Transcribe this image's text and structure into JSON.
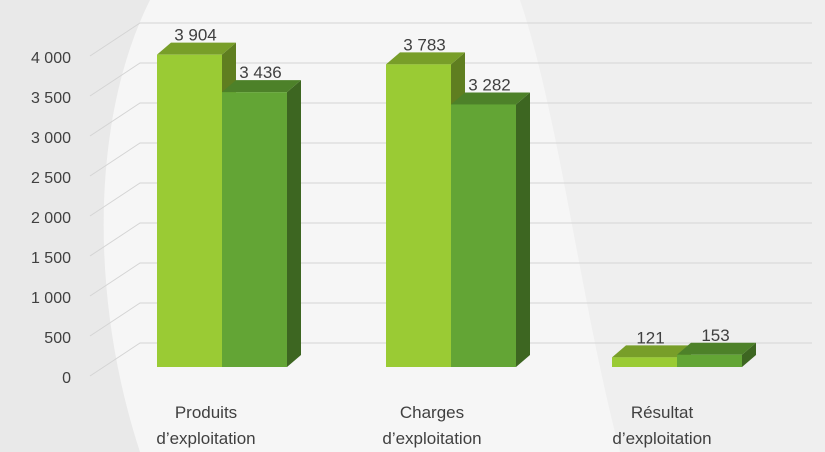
{
  "chart_data": {
    "type": "bar",
    "categories": [
      "Produits d’exploitation",
      "Charges d’exploitation",
      "Résultat d’exploitation"
    ],
    "category_lines": [
      [
        "Produits",
        "d’exploitation"
      ],
      [
        "Charges",
        "d’exploitation"
      ],
      [
        "Résultat",
        "d’exploitation"
      ]
    ],
    "series": [
      {
        "values": [
          3904,
          3783,
          121
        ],
        "labels": [
          "3 904",
          "3 783",
          "121"
        ],
        "color": "#9acb34"
      },
      {
        "values": [
          3436,
          3282,
          153
        ],
        "labels": [
          "3 436",
          "3 282",
          "153"
        ],
        "color": "#63a535"
      }
    ],
    "y_ticks": [
      {
        "value": 0,
        "label": "0"
      },
      {
        "value": 500,
        "label": "500"
      },
      {
        "value": 1000,
        "label": "1 000"
      },
      {
        "value": 1500,
        "label": "1 500"
      },
      {
        "value": 2000,
        "label": "2 000"
      },
      {
        "value": 2500,
        "label": "2 500"
      },
      {
        "value": 3000,
        "label": "3 000"
      },
      {
        "value": 3500,
        "label": "3 500"
      },
      {
        "value": 4000,
        "label": "4 000"
      }
    ],
    "ylim": [
      0,
      4000
    ],
    "grid": true,
    "legend": "none",
    "style": "3d-column"
  }
}
